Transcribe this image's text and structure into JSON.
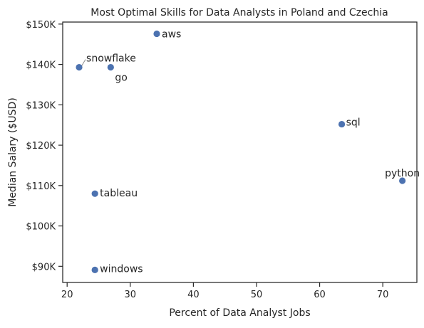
{
  "chart_data": {
    "type": "scatter",
    "title": "Most Optimal Skills for Data Analysts in Poland and Czechia",
    "xlabel": "Percent of Data Analyst Jobs",
    "ylabel": "Median Salary ($USD)",
    "xlim": [
      19.3,
      75.4
    ],
    "ylim": [
      86000,
      150500
    ],
    "xticks": [
      20,
      30,
      40,
      50,
      60,
      70
    ],
    "xtick_labels": [
      "20",
      "30",
      "40",
      "50",
      "60",
      "70"
    ],
    "yticks": [
      90000,
      100000,
      110000,
      120000,
      130000,
      140000,
      150000
    ],
    "ytick_labels": [
      "$90K",
      "$100K",
      "$110K",
      "$120K",
      "$130K",
      "$140K",
      "$150K"
    ],
    "grid": false,
    "marker_color": "#4c72b0",
    "points": [
      {
        "label": "aws",
        "x": 34.2,
        "y": 147600
      },
      {
        "label": "snowflake",
        "x": 21.9,
        "y": 139300
      },
      {
        "label": "go",
        "x": 26.9,
        "y": 139300
      },
      {
        "label": "sql",
        "x": 63.5,
        "y": 125200
      },
      {
        "label": "python",
        "x": 73.1,
        "y": 111200
      },
      {
        "label": "tableau",
        "x": 24.4,
        "y": 108000
      },
      {
        "label": "windows",
        "x": 24.4,
        "y": 89100
      }
    ]
  }
}
